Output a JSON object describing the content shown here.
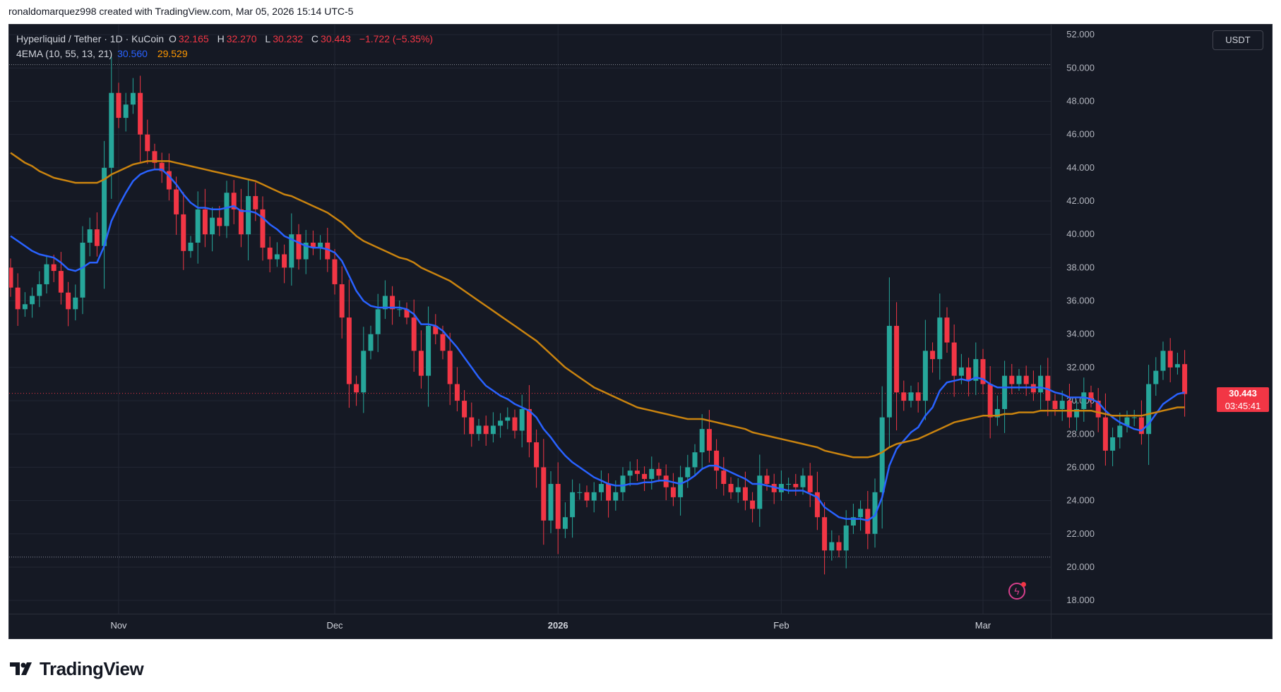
{
  "header": {
    "attribution": "ronaldomarquez998 created with TradingView.com, Mar 05, 2026 15:14 UTC-5"
  },
  "legend": {
    "symbol": "Hyperliquid / Tether · 1D · KuCoin",
    "open_label": "O",
    "open": "32.165",
    "high_label": "H",
    "high": "32.270",
    "low_label": "L",
    "low": "30.232",
    "close_label": "C",
    "close": "30.443",
    "change": "−1.722 (−5.35%)",
    "indicator": "4EMA (10, 55, 13, 21)",
    "ema_fast": "30.560",
    "ema_slow": "29.529"
  },
  "currency_button": "USDT",
  "last_price": {
    "price": "30.443",
    "countdown": "03:45:41"
  },
  "footer": {
    "brand": "TradingView"
  },
  "colors": {
    "up": "#26a69a",
    "down": "#f23645",
    "ema_fast": "#2962ff",
    "ema_slow": "#c9830f",
    "background": "#151924",
    "grid": "#222733"
  },
  "chart_data": {
    "type": "candlestick",
    "title": "",
    "xlabel": "",
    "ylabel": "",
    "ylim": [
      17.2,
      52.6
    ],
    "y_ticks": [
      "18.000",
      "20.000",
      "22.000",
      "24.000",
      "26.000",
      "28.000",
      "30.000",
      "32.000",
      "34.000",
      "36.000",
      "38.000",
      "40.000",
      "42.000",
      "44.000",
      "46.000",
      "48.000",
      "50.000",
      "52.000"
    ],
    "x_ticks": [
      {
        "label": "Nov",
        "date": "2025-11-01"
      },
      {
        "label": "Dec",
        "date": "2025-12-01"
      },
      {
        "label": "2026",
        "date": "2026-01-01"
      },
      {
        "label": "Feb",
        "date": "2026-02-01"
      },
      {
        "label": "Mar",
        "date": "2026-03-01"
      }
    ],
    "start_date": "2025-10-17",
    "horizontal_dotted_lines": [
      50.2,
      20.6
    ],
    "last_price_line": 30.443,
    "series": [
      {
        "name": "Price",
        "closes": [
          36.8,
          35.5,
          35.8,
          36.3,
          37.0,
          38.2,
          37.8,
          36.5,
          35.5,
          36.2,
          39.5,
          40.3,
          39.3,
          44.0,
          48.5,
          47.0,
          47.8,
          48.5,
          46.0,
          45.0,
          44.3,
          43.8,
          42.7,
          41.2,
          39.0,
          39.5,
          41.5,
          40.0,
          41.0,
          40.5,
          42.5,
          41.5,
          40.0,
          42.3,
          41.5,
          39.2,
          38.5,
          38.8,
          38.0,
          40.0,
          38.5,
          39.5,
          39.2,
          39.5,
          38.5,
          37.0,
          35.0,
          31.0,
          30.5,
          33.0,
          34.0,
          35.5,
          36.3,
          35.5,
          35.5,
          35.0,
          33.0,
          31.5,
          34.5,
          34.0,
          33.0,
          31.0,
          30.0,
          29.0,
          28.0,
          28.5,
          28.0,
          28.5,
          28.8,
          29.0,
          28.2,
          29.5,
          27.5,
          26.0,
          22.8,
          25.0,
          22.3,
          23.0,
          24.5,
          24.5,
          24.0,
          24.5,
          25.0,
          24.0,
          24.5,
          25.5,
          25.8,
          25.6,
          25.3,
          25.9,
          25.5,
          24.8,
          24.2,
          25.4,
          26.0,
          26.9,
          28.3,
          27.0,
          25.8,
          25.0,
          24.5,
          24.8,
          24.0,
          23.5,
          25.5,
          25.0,
          24.5,
          25.0,
          25.0,
          24.8,
          25.5,
          24.5,
          23.0,
          21.0,
          21.5,
          21.0,
          22.5,
          23.0,
          23.5,
          22.0,
          24.5,
          29.0,
          34.5,
          30.5,
          30.0,
          30.5,
          30.0,
          33.0,
          32.5,
          35.0,
          33.5,
          31.5,
          32.0,
          31.2,
          32.5,
          31.0,
          29.0,
          29.5,
          31.5,
          31.0,
          31.5,
          31.0,
          30.5,
          31.5,
          30.0,
          29.5,
          30.0,
          29.0,
          29.5,
          30.5,
          30.0,
          29.0,
          27.0,
          27.8,
          28.5,
          29.0,
          29.0,
          28.0,
          31.0,
          31.8,
          33.0,
          32.0,
          32.2,
          30.4
        ]
      }
    ],
    "indicators": [
      {
        "name": "EMA fast",
        "color_key": "ema_fast",
        "values": [
          39.9,
          39.6,
          39.3,
          39.0,
          38.8,
          38.7,
          38.6,
          38.3,
          37.9,
          37.8,
          38.0,
          38.3,
          38.3,
          39.3,
          40.8,
          41.7,
          42.5,
          43.2,
          43.6,
          43.8,
          43.9,
          43.9,
          43.5,
          43.0,
          42.4,
          41.9,
          41.6,
          41.6,
          41.5,
          41.5,
          41.6,
          41.7,
          41.4,
          41.4,
          41.3,
          41.0,
          40.6,
          40.3,
          39.9,
          39.7,
          39.5,
          39.3,
          39.2,
          39.2,
          39.1,
          38.9,
          38.4,
          37.5,
          36.6,
          36.0,
          35.7,
          35.6,
          35.6,
          35.6,
          35.6,
          35.5,
          35.2,
          34.6,
          34.6,
          34.5,
          34.2,
          33.7,
          33.2,
          32.6,
          32.0,
          31.4,
          30.9,
          30.6,
          30.3,
          30.1,
          29.8,
          29.6,
          29.4,
          29.0,
          28.3,
          27.8,
          27.2,
          26.7,
          26.3,
          26.0,
          25.7,
          25.4,
          25.2,
          25.0,
          24.9,
          24.9,
          25.0,
          25.0,
          25.1,
          25.1,
          25.2,
          25.2,
          25.1,
          25.0,
          25.2,
          25.5,
          25.9,
          26.1,
          26.1,
          25.9,
          25.7,
          25.5,
          25.3,
          25.0,
          25.0,
          24.9,
          24.8,
          24.7,
          24.6,
          24.6,
          24.6,
          24.4,
          24.2,
          23.6,
          23.3,
          23.0,
          22.9,
          22.9,
          22.9,
          22.8,
          23.1,
          24.2,
          26.1,
          27.1,
          27.6,
          28.1,
          28.4,
          29.1,
          29.6,
          30.6,
          31.1,
          31.2,
          31.3,
          31.2,
          31.4,
          31.3,
          31.0,
          30.8,
          30.8,
          30.8,
          30.8,
          30.8,
          30.8,
          30.8,
          30.7,
          30.5,
          30.4,
          30.2,
          30.2,
          30.2,
          30.1,
          29.9,
          29.4,
          29.0,
          28.7,
          28.5,
          28.3,
          28.2,
          28.6,
          29.2,
          29.8,
          30.1,
          30.4,
          30.5
        ]
      },
      {
        "name": "EMA slow",
        "color_key": "ema_slow",
        "values": [
          44.9,
          44.6,
          44.3,
          44.1,
          43.8,
          43.6,
          43.4,
          43.3,
          43.2,
          43.1,
          43.1,
          43.1,
          43.1,
          43.3,
          43.6,
          43.8,
          44.0,
          44.2,
          44.3,
          44.4,
          44.4,
          44.4,
          44.4,
          44.3,
          44.2,
          44.1,
          44.0,
          43.9,
          43.8,
          43.7,
          43.6,
          43.5,
          43.4,
          43.3,
          43.2,
          43.0,
          42.8,
          42.6,
          42.4,
          42.3,
          42.1,
          41.9,
          41.7,
          41.5,
          41.3,
          41.0,
          40.7,
          40.3,
          39.9,
          39.6,
          39.4,
          39.2,
          39.0,
          38.8,
          38.6,
          38.5,
          38.3,
          38.0,
          37.8,
          37.6,
          37.4,
          37.2,
          36.9,
          36.6,
          36.3,
          36.0,
          35.7,
          35.4,
          35.1,
          34.8,
          34.5,
          34.2,
          33.9,
          33.6,
          33.2,
          32.8,
          32.4,
          32.0,
          31.7,
          31.4,
          31.1,
          30.8,
          30.6,
          30.4,
          30.2,
          30.0,
          29.8,
          29.6,
          29.5,
          29.4,
          29.3,
          29.2,
          29.1,
          29.0,
          28.9,
          28.9,
          28.9,
          28.8,
          28.7,
          28.6,
          28.5,
          28.4,
          28.3,
          28.1,
          28.0,
          27.9,
          27.8,
          27.7,
          27.6,
          27.5,
          27.4,
          27.3,
          27.2,
          27.0,
          26.9,
          26.8,
          26.7,
          26.6,
          26.6,
          26.6,
          26.7,
          26.9,
          27.2,
          27.4,
          27.5,
          27.6,
          27.7,
          27.9,
          28.1,
          28.3,
          28.5,
          28.7,
          28.8,
          28.9,
          29.0,
          29.1,
          29.1,
          29.1,
          29.2,
          29.2,
          29.3,
          29.3,
          29.3,
          29.4,
          29.4,
          29.4,
          29.4,
          29.4,
          29.4,
          29.4,
          29.4,
          29.3,
          29.2,
          29.1,
          29.1,
          29.1,
          29.1,
          29.1,
          29.2,
          29.3,
          29.4,
          29.5,
          29.6,
          29.6
        ]
      }
    ]
  }
}
